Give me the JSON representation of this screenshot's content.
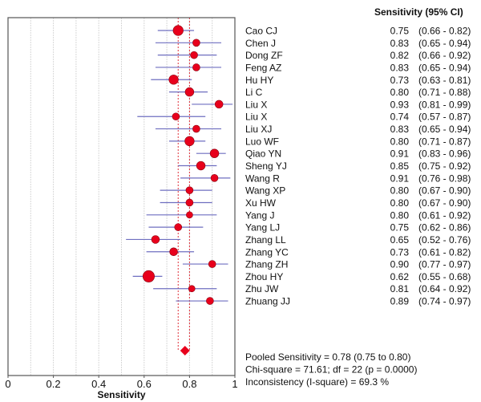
{
  "chart_data": {
    "type": "forest",
    "title": "",
    "xlabel": "Sensitivity",
    "xlim": [
      0,
      1
    ],
    "xticks": [
      "0",
      "0.2",
      "0.4",
      "0.6",
      "0.8",
      "1"
    ],
    "xtick_values": [
      0,
      0.2,
      0.4,
      0.6,
      0.8,
      1
    ],
    "minor_gridlines": [
      0.1,
      0.2,
      0.3,
      0.4,
      0.5,
      0.6,
      0.7,
      0.8,
      0.9
    ],
    "grid": true,
    "column_header": "Sensitivity (95% CI)",
    "studies": [
      {
        "name": "Cao CJ",
        "estimate": 0.75,
        "lower": 0.66,
        "upper": 0.82,
        "estimate_label": "0.75",
        "ci_label": "(0.66 - 0.82)",
        "weight": 1.4
      },
      {
        "name": "Chen J",
        "estimate": 0.83,
        "lower": 0.65,
        "upper": 0.94,
        "estimate_label": "0.83",
        "ci_label": "(0.65 - 0.94)",
        "weight": 1.0
      },
      {
        "name": "Dong ZF",
        "estimate": 0.82,
        "lower": 0.66,
        "upper": 0.92,
        "estimate_label": "0.82",
        "ci_label": "(0.66 - 0.92)",
        "weight": 1.0
      },
      {
        "name": "Feng AZ",
        "estimate": 0.83,
        "lower": 0.65,
        "upper": 0.94,
        "estimate_label": "0.83",
        "ci_label": "(0.65 - 0.94)",
        "weight": 1.0
      },
      {
        "name": "Hu HY",
        "estimate": 0.73,
        "lower": 0.63,
        "upper": 0.81,
        "estimate_label": "0.73",
        "ci_label": "(0.63 - 0.81)",
        "weight": 1.3
      },
      {
        "name": "Li C",
        "estimate": 0.8,
        "lower": 0.71,
        "upper": 0.88,
        "estimate_label": "0.80",
        "ci_label": "(0.71 - 0.88)",
        "weight": 1.2
      },
      {
        "name": "Liu X",
        "estimate": 0.93,
        "lower": 0.81,
        "upper": 0.99,
        "estimate_label": "0.93",
        "ci_label": "(0.81 - 0.99)",
        "weight": 1.1
      },
      {
        "name": "Liu X",
        "estimate": 0.74,
        "lower": 0.57,
        "upper": 0.87,
        "estimate_label": "0.74",
        "ci_label": "(0.57 - 0.87)",
        "weight": 1.0
      },
      {
        "name": "Liu XJ",
        "estimate": 0.83,
        "lower": 0.65,
        "upper": 0.94,
        "estimate_label": "0.83",
        "ci_label": "(0.65 - 0.94)",
        "weight": 1.0
      },
      {
        "name": "Luo WF",
        "estimate": 0.8,
        "lower": 0.71,
        "upper": 0.87,
        "estimate_label": "0.80",
        "ci_label": "(0.71 - 0.87)",
        "weight": 1.3
      },
      {
        "name": "Qiao YN",
        "estimate": 0.91,
        "lower": 0.83,
        "upper": 0.96,
        "estimate_label": "0.91",
        "ci_label": "(0.83 - 0.96)",
        "weight": 1.2
      },
      {
        "name": "Sheng YJ",
        "estimate": 0.85,
        "lower": 0.75,
        "upper": 0.92,
        "estimate_label": "0.85",
        "ci_label": "(0.75 - 0.92)",
        "weight": 1.2
      },
      {
        "name": "Wang R",
        "estimate": 0.91,
        "lower": 0.76,
        "upper": 0.98,
        "estimate_label": "0.91",
        "ci_label": "(0.76 - 0.98)",
        "weight": 1.0
      },
      {
        "name": "Wang XP",
        "estimate": 0.8,
        "lower": 0.67,
        "upper": 0.9,
        "estimate_label": "0.80",
        "ci_label": "(0.67 - 0.90)",
        "weight": 1.0
      },
      {
        "name": "Xu HW",
        "estimate": 0.8,
        "lower": 0.67,
        "upper": 0.9,
        "estimate_label": "0.80",
        "ci_label": "(0.67 - 0.90)",
        "weight": 1.0
      },
      {
        "name": "Yang J",
        "estimate": 0.8,
        "lower": 0.61,
        "upper": 0.92,
        "estimate_label": "0.80",
        "ci_label": "(0.61 - 0.92)",
        "weight": 0.9
      },
      {
        "name": "Yang LJ",
        "estimate": 0.75,
        "lower": 0.62,
        "upper": 0.86,
        "estimate_label": "0.75",
        "ci_label": "(0.62 - 0.86)",
        "weight": 1.0
      },
      {
        "name": "Zhang LL",
        "estimate": 0.65,
        "lower": 0.52,
        "upper": 0.76,
        "estimate_label": "0.65",
        "ci_label": "(0.52 - 0.76)",
        "weight": 1.1
      },
      {
        "name": "Zhang YC",
        "estimate": 0.73,
        "lower": 0.61,
        "upper": 0.82,
        "estimate_label": "0.73",
        "ci_label": "(0.61 - 0.82)",
        "weight": 1.1
      },
      {
        "name": "Zhang ZH",
        "estimate": 0.9,
        "lower": 0.77,
        "upper": 0.97,
        "estimate_label": "0.90",
        "ci_label": "(0.77 - 0.97)",
        "weight": 1.0
      },
      {
        "name": "Zhou HY",
        "estimate": 0.62,
        "lower": 0.55,
        "upper": 0.68,
        "estimate_label": "0.62",
        "ci_label": "(0.55 - 0.68)",
        "weight": 1.6
      },
      {
        "name": "Zhu JW",
        "estimate": 0.81,
        "lower": 0.64,
        "upper": 0.92,
        "estimate_label": "0.81",
        "ci_label": "(0.64 - 0.92)",
        "weight": 0.9
      },
      {
        "name": "Zhuang JJ",
        "estimate": 0.89,
        "lower": 0.74,
        "upper": 0.97,
        "estimate_label": "0.89",
        "ci_label": "(0.74 - 0.97)",
        "weight": 1.0
      }
    ],
    "pooled": {
      "estimate": 0.78,
      "lower": 0.75,
      "upper": 0.8
    },
    "summary_lines": [
      "Pooled Sensitivity = 0.78 (0.75 to 0.80)",
      "Chi-square = 71.61; df =  22 (p = 0.0000)",
      "Inconsistency (I-square) = 69.3 %"
    ],
    "colors": {
      "marker": "#e8001c",
      "ci_line": "#6f6fc0",
      "pooled_line": "#e0303a",
      "gridline": "#d8d8d8",
      "frame": "#555555"
    }
  }
}
